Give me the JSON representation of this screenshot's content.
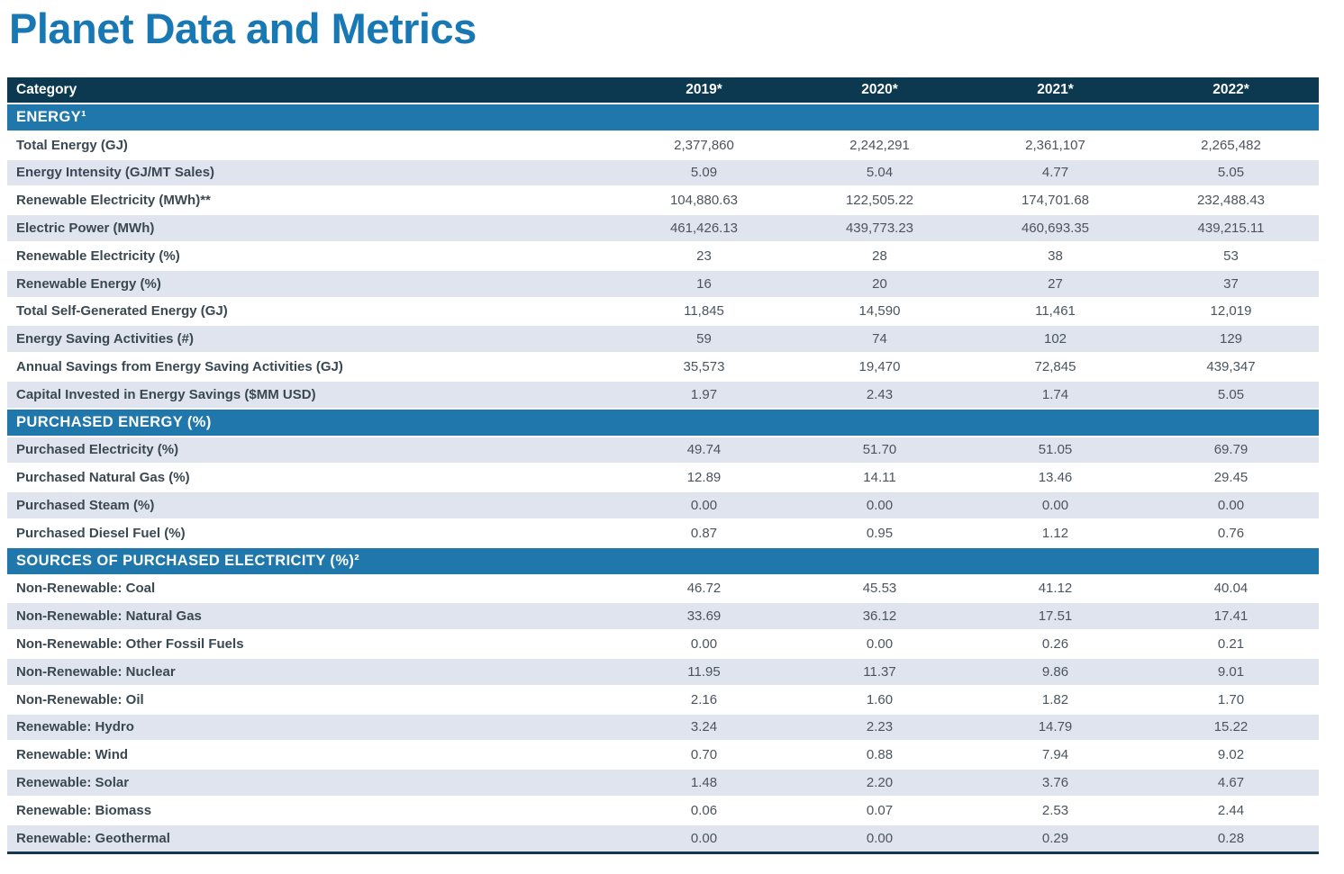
{
  "page_title": "Planet Data and Metrics",
  "colors": {
    "title_blue": "#1878b4",
    "header_navy": "#0c394f",
    "section_blue": "#1f77ab",
    "row_shaded": "#e0e4ef",
    "category_text": "#3a4852",
    "value_text": "#4b545e"
  },
  "table": {
    "columns": [
      "Category",
      "2019*",
      "2020*",
      "2021*",
      "2022*"
    ],
    "sections": [
      {
        "title": "ENERGY¹",
        "first_row_shaded": false,
        "rows": [
          {
            "category": "Total Energy (GJ)",
            "values": [
              "2,377,860",
              "2,242,291",
              "2,361,107",
              "2,265,482"
            ]
          },
          {
            "category": "Energy Intensity (GJ/MT Sales)",
            "values": [
              "5.09",
              "5.04",
              "4.77",
              "5.05"
            ]
          },
          {
            "category": "Renewable Electricity (MWh)**",
            "values": [
              "104,880.63",
              "122,505.22",
              "174,701.68",
              "232,488.43"
            ]
          },
          {
            "category": "Electric Power (MWh)",
            "values": [
              "461,426.13",
              "439,773.23",
              "460,693.35",
              "439,215.11"
            ]
          },
          {
            "category": "Renewable Electricity (%)",
            "values": [
              "23",
              "28",
              "38",
              "53"
            ]
          },
          {
            "category": "Renewable Energy (%)",
            "values": [
              "16",
              "20",
              "27",
              "37"
            ]
          },
          {
            "category": "Total Self-Generated Energy (GJ)",
            "values": [
              "11,845",
              "14,590",
              "11,461",
              "12,019"
            ]
          },
          {
            "category": "Energy Saving Activities (#)",
            "values": [
              "59",
              "74",
              "102",
              "129"
            ]
          },
          {
            "category": "Annual Savings from Energy Saving Activities (GJ)",
            "values": [
              "35,573",
              "19,470",
              "72,845",
              "439,347"
            ]
          },
          {
            "category": "Capital Invested in Energy Savings ($MM USD)",
            "values": [
              "1.97",
              "2.43",
              "1.74",
              "5.05"
            ]
          }
        ]
      },
      {
        "title": "PURCHASED ENERGY (%)",
        "first_row_shaded": true,
        "rows": [
          {
            "category": "Purchased Electricity (%)",
            "values": [
              "49.74",
              "51.70",
              "51.05",
              "69.79"
            ]
          },
          {
            "category": "Purchased Natural Gas (%)",
            "values": [
              "12.89",
              "14.11",
              "13.46",
              "29.45"
            ]
          },
          {
            "category": "Purchased Steam (%)",
            "values": [
              "0.00",
              "0.00",
              "0.00",
              "0.00"
            ]
          },
          {
            "category": "Purchased Diesel Fuel (%)",
            "values": [
              "0.87",
              "0.95",
              "1.12",
              "0.76"
            ]
          }
        ]
      },
      {
        "title": "SOURCES OF PURCHASED ELECTRICITY (%)²",
        "first_row_shaded": false,
        "rows": [
          {
            "category": "Non-Renewable: Coal",
            "values": [
              "46.72",
              "45.53",
              "41.12",
              "40.04"
            ]
          },
          {
            "category": "Non-Renewable: Natural Gas",
            "values": [
              "33.69",
              "36.12",
              "17.51",
              "17.41"
            ]
          },
          {
            "category": "Non-Renewable: Other Fossil Fuels",
            "values": [
              "0.00",
              "0.00",
              "0.26",
              "0.21"
            ]
          },
          {
            "category": "Non-Renewable: Nuclear",
            "values": [
              "11.95",
              "11.37",
              "9.86",
              "9.01"
            ]
          },
          {
            "category": "Non-Renewable: Oil",
            "values": [
              "2.16",
              "1.60",
              "1.82",
              "1.70"
            ]
          },
          {
            "category": "Renewable: Hydro",
            "values": [
              "3.24",
              "2.23",
              "14.79",
              "15.22"
            ]
          },
          {
            "category": "Renewable: Wind",
            "values": [
              "0.70",
              "0.88",
              "7.94",
              "9.02"
            ]
          },
          {
            "category": "Renewable: Solar",
            "values": [
              "1.48",
              "2.20",
              "3.76",
              "4.67"
            ]
          },
          {
            "category": "Renewable: Biomass",
            "values": [
              "0.06",
              "0.07",
              "2.53",
              "2.44"
            ]
          },
          {
            "category": "Renewable: Geothermal",
            "values": [
              "0.00",
              "0.00",
              "0.29",
              "0.28"
            ]
          }
        ]
      }
    ]
  }
}
